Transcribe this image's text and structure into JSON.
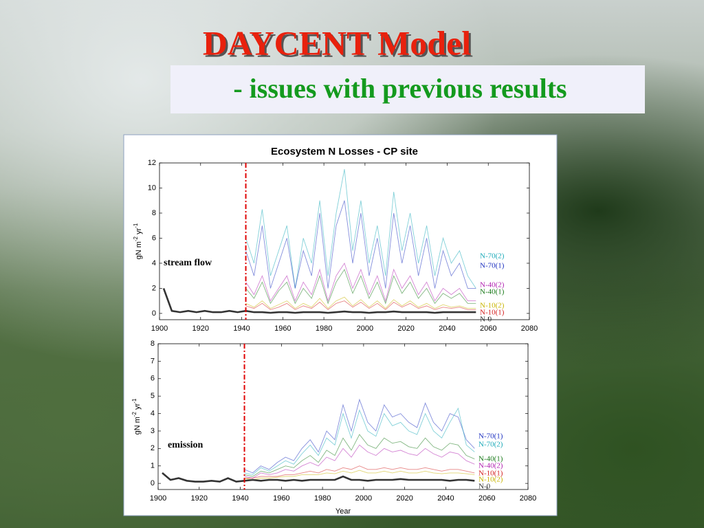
{
  "slide": {
    "title": "DAYCENT Model",
    "subtitle": "- issues with previous results"
  },
  "chart_data": [
    {
      "type": "line",
      "title": "Ecosystem N Losses - CP site",
      "annotation": "stream flow",
      "ylabel": [
        "gN m",
        "-2",
        " yr",
        "-1"
      ],
      "xlim": [
        1900,
        2080
      ],
      "xticks": [
        1900,
        1920,
        1940,
        1960,
        1980,
        2000,
        2020,
        2040,
        2060,
        2080
      ],
      "ylim": [
        -0.5,
        12
      ],
      "yticks": [
        0,
        2,
        4,
        6,
        8,
        10,
        12
      ],
      "marker_x": 1942,
      "x": [
        1902,
        1906,
        1910,
        1914,
        1918,
        1922,
        1926,
        1930,
        1934,
        1938,
        1942,
        1946,
        1950,
        1954,
        1958,
        1962,
        1966,
        1970,
        1974,
        1978,
        1982,
        1986,
        1990,
        1994,
        1998,
        2002,
        2006,
        2010,
        2014,
        2018,
        2022,
        2026,
        2030,
        2034,
        2038,
        2042,
        2046,
        2050,
        2054
      ],
      "series": [
        {
          "name": "N-70(2)",
          "color": "#1aa9b8",
          "values": [
            null,
            null,
            null,
            null,
            null,
            null,
            null,
            null,
            null,
            null,
            6,
            4,
            8.3,
            3,
            5,
            7,
            2,
            6,
            4,
            9,
            3,
            8,
            11.5,
            5,
            9,
            4,
            7,
            3,
            9.7,
            5,
            8,
            4,
            7,
            3,
            6,
            4,
            5,
            3,
            2
          ]
        },
        {
          "name": "N-70(1)",
          "color": "#1c30c0",
          "values": [
            null,
            null,
            null,
            null,
            null,
            null,
            null,
            null,
            null,
            null,
            5,
            3,
            7,
            2,
            4,
            6,
            2,
            5,
            3,
            8,
            2,
            7,
            9,
            4,
            8,
            3,
            6,
            2,
            8,
            4,
            7,
            3,
            6,
            2,
            5,
            3,
            4,
            2,
            2
          ]
        },
        {
          "name": "N-40(2)",
          "color": "#b020b0",
          "values": [
            null,
            null,
            null,
            null,
            null,
            null,
            null,
            null,
            null,
            null,
            2.5,
            1.5,
            3,
            1,
            2,
            3,
            1,
            2.5,
            1.5,
            3.5,
            1,
            3,
            4,
            2,
            3.5,
            1.5,
            3,
            1,
            3.5,
            2,
            3,
            1.5,
            2.5,
            1,
            2,
            1.5,
            2,
            1,
            1
          ]
        },
        {
          "name": "N-40(1)",
          "color": "#1a7a1a",
          "values": [
            null,
            null,
            null,
            null,
            null,
            null,
            null,
            null,
            null,
            null,
            2,
            1.2,
            2.5,
            0.8,
            1.8,
            2.5,
            0.8,
            2,
            1.2,
            3,
            0.8,
            2.5,
            3.5,
            1.6,
            3,
            1.2,
            2.5,
            0.8,
            3,
            1.6,
            2.5,
            1.2,
            2,
            0.8,
            1.6,
            1.2,
            1.6,
            0.8,
            0.8
          ]
        },
        {
          "name": "N-10(2)",
          "color": "#c8b400",
          "values": [
            null,
            null,
            null,
            null,
            null,
            null,
            null,
            null,
            null,
            null,
            0.8,
            0.5,
            1,
            0.4,
            0.7,
            1,
            0.4,
            0.8,
            0.5,
            1.2,
            0.4,
            1,
            1.3,
            0.6,
            1.1,
            0.5,
            1,
            0.4,
            1.1,
            0.6,
            1,
            0.5,
            0.8,
            0.4,
            0.7,
            0.5,
            0.6,
            0.4,
            0.4
          ]
        },
        {
          "name": "N-10(1)",
          "color": "#d42020",
          "values": [
            null,
            null,
            null,
            null,
            null,
            null,
            null,
            null,
            null,
            null,
            0.6,
            0.4,
            0.8,
            0.3,
            0.5,
            0.8,
            0.3,
            0.6,
            0.4,
            0.9,
            0.3,
            0.8,
            1,
            0.5,
            0.9,
            0.4,
            0.8,
            0.3,
            0.9,
            0.5,
            0.8,
            0.4,
            0.6,
            0.3,
            0.5,
            0.4,
            0.5,
            0.3,
            0.3
          ]
        },
        {
          "name": "N-0",
          "color": "#333333",
          "values": [
            2,
            0.2,
            0.1,
            0.2,
            0.1,
            0.2,
            0.1,
            0.1,
            0.2,
            0.1,
            0.2,
            0.1,
            0.1,
            0.05,
            0.1,
            0.1,
            0.05,
            0.1,
            0.1,
            0.1,
            0.05,
            0.1,
            0.15,
            0.1,
            0.1,
            0.05,
            0.1,
            0.1,
            0.15,
            0.1,
            0.1,
            0.1,
            0.1,
            0.05,
            0.1,
            0.1,
            0.1,
            0.1,
            0.1
          ]
        }
      ]
    },
    {
      "type": "line",
      "xlabel": "Year",
      "annotation": "emission",
      "ylabel": [
        "gN m",
        "-2",
        " yr",
        "-1"
      ],
      "xlim": [
        1900,
        2080
      ],
      "xticks": [
        1900,
        1920,
        1940,
        1960,
        1980,
        2000,
        2020,
        2040,
        2060,
        2080
      ],
      "ylim": [
        -0.35,
        8
      ],
      "yticks": [
        0,
        1,
        2,
        3,
        4,
        5,
        6,
        7,
        8
      ],
      "marker_x": 1942,
      "x": [
        1902,
        1906,
        1910,
        1914,
        1918,
        1922,
        1926,
        1930,
        1934,
        1938,
        1942,
        1946,
        1950,
        1954,
        1958,
        1962,
        1966,
        1970,
        1974,
        1978,
        1982,
        1986,
        1990,
        1994,
        1998,
        2002,
        2006,
        2010,
        2014,
        2018,
        2022,
        2026,
        2030,
        2034,
        2038,
        2042,
        2046,
        2050,
        2054
      ],
      "series": [
        {
          "name": "N-70(1)",
          "color": "#1c30c0",
          "values": [
            null,
            null,
            null,
            null,
            null,
            null,
            null,
            null,
            null,
            null,
            0.8,
            0.6,
            1,
            0.8,
            1.2,
            1.5,
            1.3,
            2,
            2.5,
            1.8,
            3,
            2.5,
            4.5,
            3,
            4.8,
            3.5,
            3,
            4.5,
            3.8,
            4,
            3.5,
            3.2,
            4.6,
            3.5,
            3,
            4,
            3.8,
            2.5,
            2
          ]
        },
        {
          "name": "N-70(2)",
          "color": "#1aa9b8",
          "values": [
            null,
            null,
            null,
            null,
            null,
            null,
            null,
            null,
            null,
            null,
            0.6,
            0.5,
            0.9,
            0.7,
            1,
            1.3,
            1.1,
            1.7,
            2.2,
            1.6,
            2.6,
            2.2,
            4,
            2.6,
            4.2,
            3,
            2.7,
            4,
            3.3,
            3.5,
            3,
            2.8,
            4,
            3,
            2.6,
            3.5,
            4.3,
            2.2,
            1.8
          ]
        },
        {
          "name": "N-40(1)",
          "color": "#1a7a1a",
          "values": [
            null,
            null,
            null,
            null,
            null,
            null,
            null,
            null,
            null,
            null,
            0.5,
            0.4,
            0.7,
            0.6,
            0.8,
            1,
            0.9,
            1.3,
            1.6,
            1.2,
            1.9,
            1.6,
            2.6,
            1.9,
            2.8,
            2.2,
            2,
            2.6,
            2.3,
            2.4,
            2.1,
            2,
            2.6,
            2.1,
            1.9,
            2.3,
            2.2,
            1.6,
            1.4
          ]
        },
        {
          "name": "N-40(2)",
          "color": "#b020b0",
          "values": [
            null,
            null,
            null,
            null,
            null,
            null,
            null,
            null,
            null,
            null,
            0.4,
            0.3,
            0.6,
            0.5,
            0.6,
            0.8,
            0.7,
            1,
            1.2,
            1,
            1.5,
            1.3,
            2,
            1.5,
            2.2,
            1.8,
            1.6,
            2,
            1.8,
            1.9,
            1.7,
            1.6,
            2,
            1.7,
            1.5,
            1.8,
            1.7,
            1.3,
            1.1
          ]
        },
        {
          "name": "N-10(1)",
          "color": "#d42020",
          "values": [
            null,
            null,
            null,
            null,
            null,
            null,
            null,
            null,
            null,
            null,
            0.3,
            0.3,
            0.4,
            0.4,
            0.4,
            0.5,
            0.5,
            0.6,
            0.7,
            0.6,
            0.8,
            0.7,
            0.9,
            0.8,
            1,
            0.8,
            0.8,
            0.9,
            0.8,
            0.9,
            0.8,
            0.8,
            0.9,
            0.8,
            0.7,
            0.8,
            0.8,
            0.7,
            0.6
          ]
        },
        {
          "name": "N-10(2)",
          "color": "#c8b400",
          "values": [
            null,
            null,
            null,
            null,
            null,
            null,
            null,
            null,
            null,
            null,
            0.3,
            0.2,
            0.3,
            0.3,
            0.35,
            0.4,
            0.4,
            0.5,
            0.5,
            0.5,
            0.6,
            0.55,
            0.7,
            0.6,
            0.75,
            0.6,
            0.6,
            0.7,
            0.6,
            0.7,
            0.6,
            0.6,
            0.7,
            0.6,
            0.55,
            0.6,
            0.6,
            0.55,
            0.5
          ]
        },
        {
          "name": "N-0",
          "color": "#333333",
          "values": [
            0.6,
            0.2,
            0.3,
            0.15,
            0.1,
            0.1,
            0.15,
            0.1,
            0.3,
            0.1,
            0.15,
            0.2,
            0.15,
            0.2,
            0.2,
            0.15,
            0.2,
            0.15,
            0.2,
            0.2,
            0.2,
            0.2,
            0.4,
            0.2,
            0.2,
            0.15,
            0.2,
            0.2,
            0.2,
            0.25,
            0.2,
            0.2,
            0.2,
            0.2,
            0.2,
            0.15,
            0.2,
            0.2,
            0.15
          ]
        }
      ]
    }
  ]
}
